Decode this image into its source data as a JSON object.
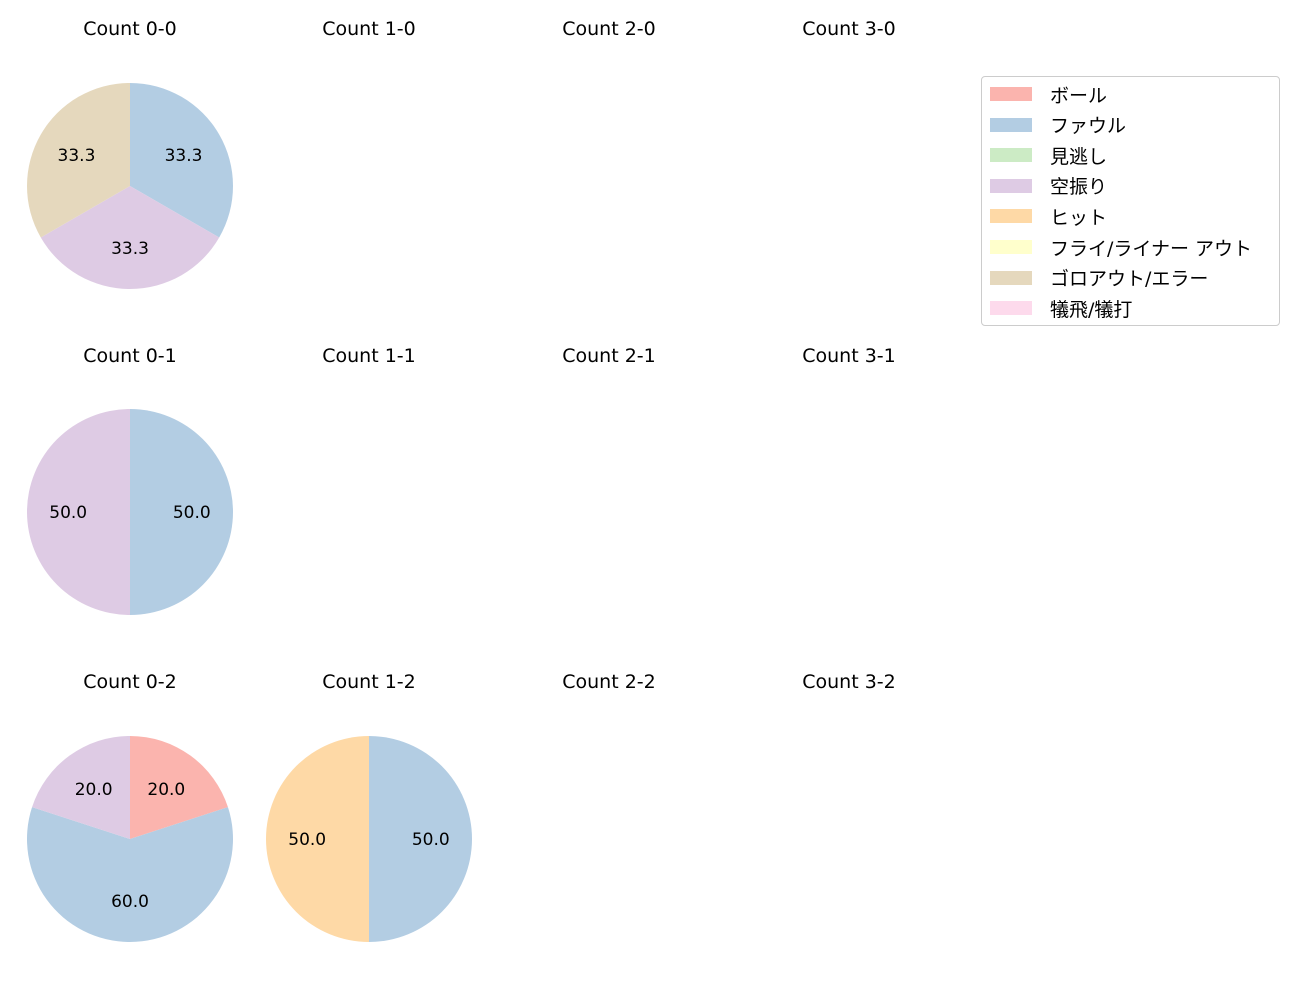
{
  "chart_data": {
    "type": "pie",
    "colors": {
      "ボール": "#fbb4ae",
      "ファウル": "#b3cde3",
      "見逃し": "#ccebc5",
      "空振り": "#decbe4",
      "ヒット": "#fed9a6",
      "フライ/ライナー アウト": "#ffffcc",
      "ゴロアウト/エラー": "#e5d8bd",
      "犠飛/犠打": "#fddaec"
    },
    "legend": [
      "ボール",
      "ファウル",
      "見逃し",
      "空振り",
      "ヒット",
      "フライ/ライナー アウト",
      "ゴロアウト/エラー",
      "犠飛/犠打"
    ],
    "charts": [
      {
        "title": "Count 0-0",
        "slices": [
          {
            "label": "ファウル",
            "value": 33.3
          },
          {
            "label": "空振り",
            "value": 33.3
          },
          {
            "label": "ゴロアウト/エラー",
            "value": 33.3
          }
        ]
      },
      {
        "title": "Count 1-0",
        "slices": []
      },
      {
        "title": "Count 2-0",
        "slices": []
      },
      {
        "title": "Count 3-0",
        "slices": []
      },
      {
        "title": "Count 0-1",
        "slices": [
          {
            "label": "ファウル",
            "value": 50.0
          },
          {
            "label": "空振り",
            "value": 50.0
          }
        ]
      },
      {
        "title": "Count 1-1",
        "slices": []
      },
      {
        "title": "Count 2-1",
        "slices": []
      },
      {
        "title": "Count 3-1",
        "slices": []
      },
      {
        "title": "Count 0-2",
        "slices": [
          {
            "label": "ボール",
            "value": 20.0
          },
          {
            "label": "ファウル",
            "value": 60.0
          },
          {
            "label": "空振り",
            "value": 20.0
          }
        ]
      },
      {
        "title": "Count 1-2",
        "slices": [
          {
            "label": "ファウル",
            "value": 50.0
          },
          {
            "label": "ヒット",
            "value": 50.0
          }
        ]
      },
      {
        "title": "Count 2-2",
        "slices": []
      },
      {
        "title": "Count 3-2",
        "slices": []
      }
    ]
  }
}
